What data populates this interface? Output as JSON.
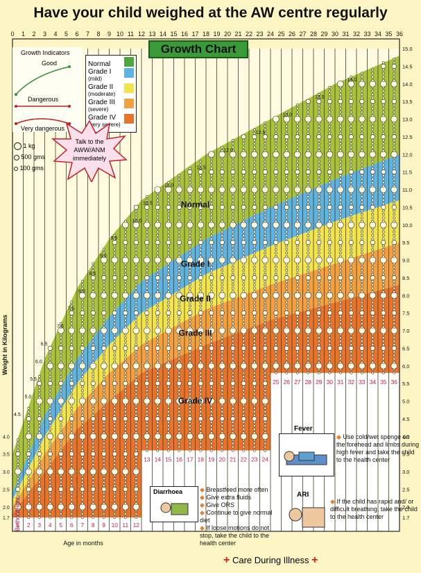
{
  "header": {
    "title": "Have your child weighed at the AW centre regularly"
  },
  "chart_data": {
    "type": "area",
    "title": "Growth Chart",
    "xlabel": "Age in months",
    "ylabel": "Weight in Kilograms",
    "x_ticks_top": [
      "0",
      "1",
      "2",
      "3",
      "4",
      "5",
      "6",
      "7",
      "8",
      "9",
      "10",
      "11",
      "12",
      "13",
      "14",
      "15",
      "16",
      "17",
      "18",
      "19",
      "20",
      "21",
      "22",
      "23",
      "24",
      "25",
      "26",
      "27",
      "28",
      "29",
      "30",
      "31",
      "32",
      "33",
      "34",
      "35",
      "36"
    ],
    "x_labels_row1": [
      "1",
      "2",
      "3",
      "4",
      "5",
      "6",
      "7",
      "8",
      "9",
      "10",
      "11",
      "12"
    ],
    "x_labels_row2": [
      "13",
      "14",
      "15",
      "16",
      "17",
      "18",
      "19",
      "20",
      "21",
      "22",
      "23",
      "24"
    ],
    "x_labels_row3": [
      "25",
      "26",
      "27",
      "28",
      "29",
      "30",
      "31",
      "32",
      "33",
      "34",
      "35",
      "36"
    ],
    "birth_weight_label": "Birth Weight",
    "y_ticks": [
      "1.7",
      "2.0",
      "2.5",
      "3.0",
      "3.5",
      "4.0",
      "4.5",
      "5.0",
      "5.5",
      "6.0",
      "6.5",
      "7.0",
      "7.5",
      "8.0",
      "8.5",
      "9.0",
      "9.5",
      "10.0",
      "10.5",
      "11.0",
      "11.5",
      "12.0",
      "12.5",
      "13.0",
      "13.5",
      "14.0",
      "14.5",
      "15.0"
    ],
    "ylim": [
      1.7,
      15.0
    ],
    "xlim": [
      0,
      36
    ],
    "zones": [
      {
        "name": "Normal",
        "color": "#a8c23c"
      },
      {
        "name": "Grade I",
        "color": "#5fb3e0"
      },
      {
        "name": "Grade II",
        "color": "#f2e44c"
      },
      {
        "name": "Grade III",
        "color": "#f2a040"
      },
      {
        "name": "Grade IV",
        "color": "#e8742c"
      }
    ],
    "curves": [
      {
        "name": "top",
        "x": [
          0,
          3,
          6,
          9,
          12,
          18,
          24,
          30,
          36
        ],
        "y": [
          3.5,
          6.2,
          8.2,
          9.6,
          10.7,
          12.0,
          13.0,
          14.0,
          14.8
        ]
      },
      {
        "name": "normal-lower",
        "x": [
          0,
          3,
          6,
          9,
          12,
          18,
          24,
          30,
          36
        ],
        "y": [
          2.4,
          4.6,
          6.2,
          7.4,
          8.4,
          9.6,
          10.5,
          11.3,
          12.0
        ]
      },
      {
        "name": "grade1-lower",
        "x": [
          0,
          3,
          6,
          9,
          12,
          18,
          24,
          30,
          36
        ],
        "y": [
          2.2,
          4.0,
          5.5,
          6.6,
          7.5,
          8.6,
          9.4,
          10.1,
          10.7
        ]
      },
      {
        "name": "grade2-lower",
        "x": [
          0,
          3,
          6,
          9,
          12,
          18,
          24,
          30,
          36
        ],
        "y": [
          2.0,
          3.5,
          4.8,
          5.8,
          6.6,
          7.6,
          8.3,
          8.9,
          9.5
        ]
      },
      {
        "name": "grade3-lower",
        "x": [
          0,
          3,
          6,
          9,
          12,
          18,
          24,
          30,
          36
        ],
        "y": [
          1.8,
          3.0,
          4.2,
          5.0,
          5.8,
          6.6,
          7.3,
          7.8,
          8.3
        ]
      },
      {
        "name": "grade4-lower",
        "x": [
          0,
          12,
          12,
          24,
          24,
          36
        ],
        "y": [
          1.7,
          1.7,
          3.6,
          3.6,
          5.8,
          5.8
        ]
      }
    ],
    "curve_labels": [
      {
        "text": "4.5",
        "x": 0,
        "y": 4.5
      },
      {
        "text": "5.0",
        "x": 1,
        "y": 5.0
      },
      {
        "text": "5.5",
        "x": 1.5,
        "y": 5.5
      },
      {
        "text": "6.0",
        "x": 2,
        "y": 6.0
      },
      {
        "text": "6.5",
        "x": 2.5,
        "y": 6.5
      },
      {
        "text": "7.0",
        "x": 4,
        "y": 7.0
      },
      {
        "text": "7.5",
        "x": 5,
        "y": 7.5
      },
      {
        "text": "8.0",
        "x": 6,
        "y": 8.0
      },
      {
        "text": "8.5",
        "x": 7,
        "y": 8.5
      },
      {
        "text": "9.0",
        "x": 8,
        "y": 9.0
      },
      {
        "text": "9.5",
        "x": 9,
        "y": 9.5
      },
      {
        "text": "10.0",
        "x": 11,
        "y": 10.0
      },
      {
        "text": "10.5",
        "x": 12,
        "y": 10.5
      },
      {
        "text": "11.0",
        "x": 14,
        "y": 11.0
      },
      {
        "text": "11.5",
        "x": 17,
        "y": 11.5
      },
      {
        "text": "12.0",
        "x": 19.5,
        "y": 12.0
      },
      {
        "text": "12.5",
        "x": 22.5,
        "y": 12.5
      },
      {
        "text": "13.0",
        "x": 25,
        "y": 13.0
      },
      {
        "text": "13.5",
        "x": 28,
        "y": 13.5
      },
      {
        "text": "14.0",
        "x": 31,
        "y": 14.0
      }
    ],
    "zone_labels": [
      "Normal",
      "Grade I",
      "Grade II",
      "Grade III",
      "Grade IV"
    ]
  },
  "legend": {
    "items": [
      {
        "label": "Normal",
        "sub": "",
        "color": "#a8c23c"
      },
      {
        "label": "Grade I",
        "sub": "(mild)",
        "color": "#5fb3e0"
      },
      {
        "label": "Grade II",
        "sub": "(moderate)",
        "color": "#f2e44c"
      },
      {
        "label": "Grade III",
        "sub": "(severe)",
        "color": "#f2a040"
      },
      {
        "label": "Grade IV",
        "sub": "(very severe)",
        "color": "#e8742c"
      }
    ]
  },
  "indicators": {
    "title": "Growth Indicators",
    "good": "Good",
    "dangerous": "Dangerous",
    "very_dangerous": "Very dangerous"
  },
  "scale": {
    "items": [
      "1 kg",
      "500 gms",
      "100 gms"
    ]
  },
  "callout": {
    "text": "Talk to the AWW/ANM immediately"
  },
  "fever": {
    "title": "Fever",
    "text": "Use cold/wet sponge on the forehead and limbs during high fever and take the child to the health center"
  },
  "diarrhoea": {
    "title": "Diarrhoea",
    "bullets": [
      "Breastfeed more often",
      "Give extra fluids",
      "Give ORS",
      "Continue to give normal diet",
      "If loose motions do not stop, take the child to the health center"
    ]
  },
  "ari": {
    "title": "ARI",
    "text": "If the child has rapid and/ or difficult breathing, take the child to the health center"
  },
  "footer": {
    "care_label": "Care During Illness"
  }
}
